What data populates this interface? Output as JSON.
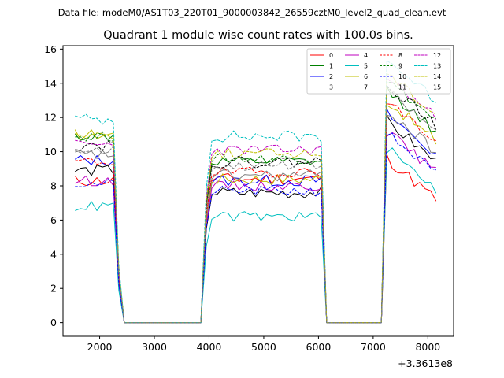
{
  "chart_data": {
    "type": "line",
    "suptitle": "Data file: modeM0/AS1T03_220T01_9000003842_26559cztM0_level2_quad_clean.evt",
    "title": "Quadrant 1 module wise count rates with 100.0s bins.",
    "xlabel": "",
    "ylabel": "",
    "offset_label": "+3.3613e8",
    "xlim": [
      1330,
      8470
    ],
    "ylim": [
      -0.8,
      16.2
    ],
    "x_ticks": [
      2000,
      3000,
      4000,
      5000,
      6000,
      7000,
      8000
    ],
    "y_ticks": [
      0,
      2,
      4,
      6,
      8,
      10,
      12,
      14,
      16
    ],
    "x": [
      1550,
      1650,
      1750,
      1850,
      1950,
      2050,
      2150,
      2250,
      2350,
      2450,
      2550,
      2650,
      2750,
      2850,
      2950,
      3050,
      3150,
      3250,
      3350,
      3450,
      3550,
      3650,
      3750,
      3850,
      3950,
      4050,
      4150,
      4250,
      4350,
      4450,
      4550,
      4650,
      4750,
      4850,
      4950,
      5050,
      5150,
      5250,
      5350,
      5450,
      5550,
      5650,
      5750,
      5850,
      5950,
      6050,
      6150,
      6250,
      6350,
      6450,
      6550,
      6650,
      6750,
      6850,
      6950,
      7050,
      7150,
      7250,
      7350,
      7450,
      7550,
      7650,
      7750,
      7850,
      7950,
      8050,
      8150
    ],
    "gap_value": 0,
    "segments": [
      [
        0,
        9
      ],
      [
        23,
        46
      ],
      [
        56,
        66
      ]
    ],
    "series": [
      {
        "name": "0",
        "color": "#ff0000",
        "dash": false,
        "levels": [
          8.3,
          8.4,
          8.0
        ],
        "noise": 0.35,
        "seed": 11
      },
      {
        "name": "1",
        "color": "#008000",
        "dash": false,
        "levels": [
          10.9,
          9.4,
          12.0
        ],
        "noise": 0.3,
        "seed": 12
      },
      {
        "name": "2",
        "color": "#0000ff",
        "dash": false,
        "levels": [
          9.5,
          8.3,
          10.6
        ],
        "noise": 0.35,
        "seed": 13
      },
      {
        "name": "3",
        "color": "#000000",
        "dash": false,
        "levels": [
          8.9,
          7.6,
          10.2
        ],
        "noise": 0.35,
        "seed": 14
      },
      {
        "name": "4",
        "color": "#bf00bf",
        "dash": false,
        "levels": [
          8.3,
          8.0,
          9.6
        ],
        "noise": 0.3,
        "seed": 15
      },
      {
        "name": "5",
        "color": "#00bfbf",
        "dash": false,
        "levels": [
          6.8,
          6.2,
          8.6
        ],
        "noise": 0.3,
        "seed": 16
      },
      {
        "name": "6",
        "color": "#bfbf00",
        "dash": false,
        "levels": [
          11.0,
          8.4,
          11.4
        ],
        "noise": 0.35,
        "seed": 17
      },
      {
        "name": "7",
        "color": "#808080",
        "dash": false,
        "levels": [
          9.8,
          8.6,
          10.8
        ],
        "noise": 0.35,
        "seed": 18
      },
      {
        "name": "8",
        "color": "#ff0000",
        "dash": true,
        "levels": [
          9.4,
          8.8,
          11.4
        ],
        "noise": 0.3,
        "seed": 19
      },
      {
        "name": "9",
        "color": "#008000",
        "dash": true,
        "levels": [
          10.9,
          9.6,
          12.6
        ],
        "noise": 0.3,
        "seed": 20
      },
      {
        "name": "10",
        "color": "#0000ff",
        "dash": true,
        "levels": [
          8.1,
          7.7,
          9.5
        ],
        "noise": 0.3,
        "seed": 21
      },
      {
        "name": "11",
        "color": "#000000",
        "dash": true,
        "levels": [
          10.4,
          9.4,
          12.4
        ],
        "noise": 0.35,
        "seed": 22
      },
      {
        "name": "12",
        "color": "#bf00bf",
        "dash": true,
        "levels": [
          10.4,
          10.1,
          12.8
        ],
        "noise": 0.3,
        "seed": 23
      },
      {
        "name": "13",
        "color": "#00bfbf",
        "dash": true,
        "levels": [
          11.9,
          10.9,
          13.8
        ],
        "noise": 0.35,
        "seed": 24
      },
      {
        "name": "14",
        "color": "#bfbf00",
        "dash": true,
        "levels": [
          11.0,
          9.9,
          13.0
        ],
        "noise": 0.3,
        "seed": 25
      },
      {
        "name": "15",
        "color": "#808080",
        "dash": true,
        "levels": [
          10.1,
          9.2,
          12.0
        ],
        "noise": 0.3,
        "seed": 26
      }
    ],
    "legend_position": "top-right",
    "grid": false
  }
}
